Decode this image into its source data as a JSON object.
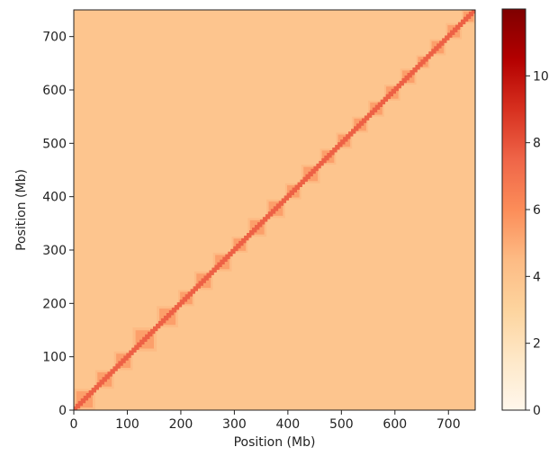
{
  "chart_data": {
    "type": "heatmap",
    "xlabel": "Position (Mb)",
    "ylabel": "Position (Mb)",
    "xlim": [
      0,
      750
    ],
    "ylim": [
      0,
      750
    ],
    "x_ticks": [
      0,
      100,
      200,
      300,
      400,
      500,
      600,
      700
    ],
    "y_ticks": [
      0,
      100,
      200,
      300,
      400,
      500,
      600,
      700
    ],
    "colorbar": {
      "range": [
        0,
        12
      ],
      "ticks": [
        0,
        2,
        4,
        6,
        8,
        10
      ],
      "colormap": "OrRd",
      "stops": [
        "#fff7ec",
        "#fee8c8",
        "#fdd49e",
        "#fdbb84",
        "#fc8d59",
        "#ef6548",
        "#d7301f",
        "#b30000",
        "#7f0000"
      ]
    },
    "background_value": 3.9,
    "diagonal_value": 7.6,
    "domains_mb": [
      {
        "start": 0,
        "end": 40
      },
      {
        "start": 40,
        "end": 75
      },
      {
        "start": 75,
        "end": 110
      },
      {
        "start": 110,
        "end": 155
      },
      {
        "start": 155,
        "end": 195
      },
      {
        "start": 195,
        "end": 225
      },
      {
        "start": 225,
        "end": 260
      },
      {
        "start": 260,
        "end": 295
      },
      {
        "start": 295,
        "end": 325
      },
      {
        "start": 325,
        "end": 360
      },
      {
        "start": 360,
        "end": 395
      },
      {
        "start": 395,
        "end": 425
      },
      {
        "start": 425,
        "end": 460
      },
      {
        "start": 460,
        "end": 490
      },
      {
        "start": 490,
        "end": 520
      },
      {
        "start": 520,
        "end": 550
      },
      {
        "start": 550,
        "end": 580
      },
      {
        "start": 580,
        "end": 610
      },
      {
        "start": 610,
        "end": 640
      },
      {
        "start": 640,
        "end": 665
      },
      {
        "start": 665,
        "end": 695
      },
      {
        "start": 695,
        "end": 725
      },
      {
        "start": 725,
        "end": 750
      }
    ]
  }
}
